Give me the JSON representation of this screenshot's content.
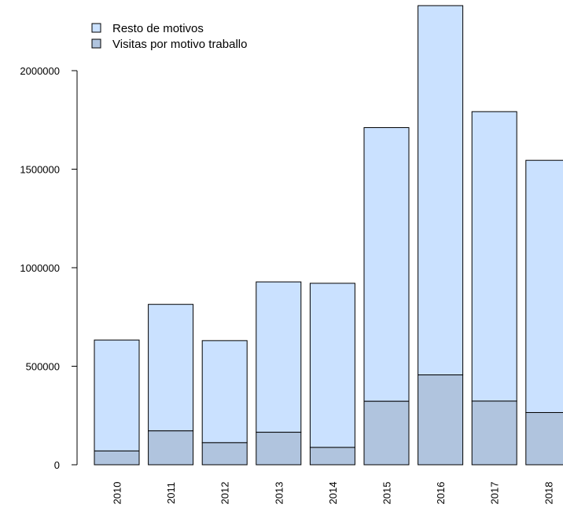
{
  "chart_data": {
    "type": "bar",
    "stacked": true,
    "categories": [
      "2010",
      "2011",
      "2012",
      "2013",
      "2014",
      "2015",
      "2016",
      "2017",
      "2018"
    ],
    "series": [
      {
        "name": "Visitas por motivo traballo",
        "color": "#b0c4de",
        "values": [
          70000,
          172000,
          112000,
          165000,
          88000,
          322000,
          456000,
          323000,
          265000
        ]
      },
      {
        "name": "Resto de motivos",
        "color": "#cae1ff",
        "values": [
          563000,
          642000,
          518000,
          763000,
          833000,
          1389000,
          1874000,
          1469000,
          1280000
        ]
      }
    ],
    "totals": [
      633000,
      814000,
      630000,
      928000,
      921000,
      1711000,
      2330000,
      1792000,
      1545000
    ],
    "yticks": [
      0,
      500000,
      1000000,
      1500000,
      2000000
    ],
    "ylim": [
      0,
      2400000
    ],
    "grid": false,
    "legend_position": "top-left",
    "legend": [
      {
        "label": "Resto de motivos",
        "color": "#cae1ff"
      },
      {
        "label": "Visitas por motivo traballo",
        "color": "#b0c4de"
      }
    ]
  }
}
